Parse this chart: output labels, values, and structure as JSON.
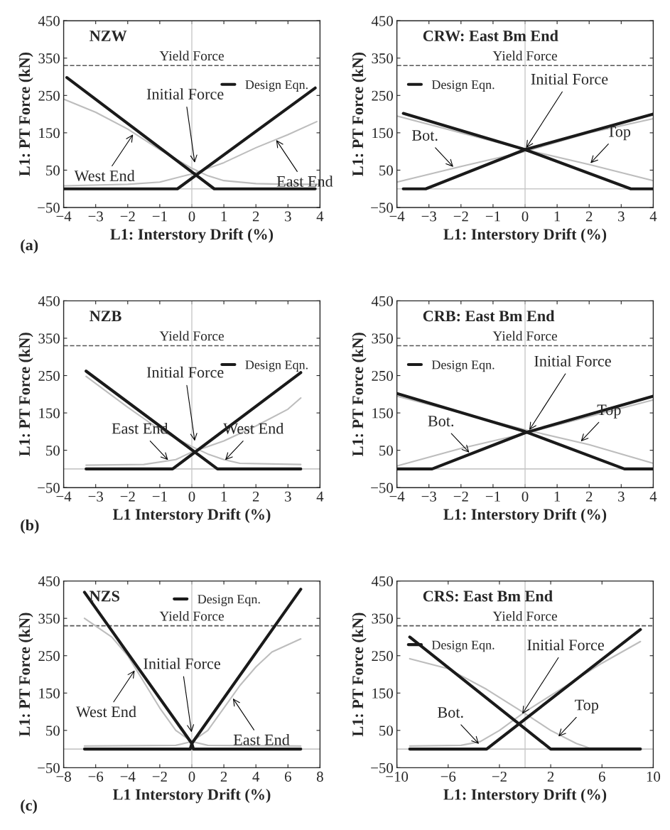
{
  "chart_data": [
    {
      "type": "line",
      "title": "NZW",
      "xlabel": "L1: Interstory Drift (%)",
      "ylabel": "L1: PT Force (kN)",
      "xlim": [
        -4,
        4
      ],
      "xticks": [
        -4,
        -3,
        -2,
        -1,
        0,
        1,
        2,
        3,
        4
      ],
      "ylim": [
        -50,
        450
      ],
      "yticks": [
        -50,
        50,
        150,
        250,
        350,
        450
      ],
      "legend": "top right",
      "series": [
        {
          "color": "#bdbdbd",
          "x": [
            -4,
            -3,
            -2,
            -1,
            0,
            0.5,
            1,
            2,
            3,
            4
          ],
          "values": [
            240,
            205,
            160,
            105,
            55,
            35,
            22,
            14,
            12,
            12
          ]
        },
        {
          "color": "#bdbdbd",
          "x": [
            -4,
            -2,
            -1,
            0,
            1,
            2,
            3,
            3.9
          ],
          "values": [
            8,
            12,
            18,
            40,
            70,
            110,
            145,
            180
          ]
        },
        {
          "name": "Design Eqn.",
          "color": "#1a1a1a",
          "x": [
            -3.9,
            0.7,
            3.85
          ],
          "values": [
            298,
            0,
            0
          ]
        },
        {
          "color": "#1a1a1a",
          "x": [
            -4,
            -0.45,
            3.85
          ],
          "values": [
            0,
            0,
            270
          ]
        }
      ],
      "ref_lines": [
        {
          "axis": "y",
          "value": 330,
          "label": "Yield Force",
          "color": "#555555",
          "line_style": "dashed"
        },
        {
          "axis": "x",
          "value": 0,
          "color": "#c8c8c8"
        },
        {
          "axis": "y",
          "value": 0,
          "color": "#c8c8c8"
        }
      ],
      "annotations": [
        "(a)",
        {
          "text": "Initial Force",
          "x": 0.1,
          "y": 65
        },
        {
          "text": "West End",
          "x": -1.8,
          "y": 150
        },
        {
          "text": "East End",
          "x": 2.6,
          "y": 135
        }
      ]
    },
    {
      "type": "line",
      "title": "CRW: East Bm End",
      "xlabel": "L1: Interstory Drift (%)",
      "ylabel": "L1: PT Force (kN)",
      "xlim": [
        -4,
        4
      ],
      "xticks": [
        -4,
        -3,
        -2,
        -1,
        0,
        1,
        2,
        3,
        4
      ],
      "ylim": [
        -50,
        450
      ],
      "yticks": [
        -50,
        50,
        150,
        250,
        350,
        450
      ],
      "legend": "top left",
      "series": [
        {
          "color": "#bdbdbd",
          "x": [
            -4,
            -2,
            0,
            2,
            4
          ],
          "values": [
            18,
            60,
            100,
            150,
            188
          ]
        },
        {
          "color": "#bdbdbd",
          "x": [
            -4,
            -2,
            0,
            2,
            4
          ],
          "values": [
            195,
            150,
            105,
            65,
            22
          ]
        },
        {
          "name": "Design Eqn.",
          "color": "#1a1a1a",
          "x": [
            -3.8,
            -3.1,
            0,
            4
          ],
          "values": [
            0,
            0,
            105,
            200
          ]
        },
        {
          "color": "#1a1a1a",
          "x": [
            -3.8,
            0,
            3.3,
            4
          ],
          "values": [
            202,
            105,
            0,
            0
          ]
        }
      ],
      "ref_lines": [
        {
          "axis": "y",
          "value": 330,
          "label": "Yield Force",
          "color": "#555555",
          "line_style": "dashed"
        },
        {
          "axis": "x",
          "value": 0,
          "color": "#c8c8c8"
        },
        {
          "axis": "y",
          "value": 0,
          "color": "#c8c8c8"
        }
      ],
      "annotations": [
        {
          "text": "Initial Force",
          "x": 0,
          "y": 105
        },
        {
          "text": "Bot.",
          "x": -2.2,
          "y": 55
        },
        {
          "text": "Top",
          "x": 2,
          "y": 65
        }
      ]
    },
    {
      "type": "line",
      "title": "NZB",
      "xlabel": "L1 Interstory Drift (%)",
      "ylabel": "L1: PT Force (kN)",
      "xlim": [
        -4,
        4
      ],
      "xticks": [
        -4,
        -3,
        -2,
        -1,
        0,
        1,
        2,
        3,
        4
      ],
      "ylim": [
        -50,
        450
      ],
      "yticks": [
        -50,
        50,
        150,
        250,
        350,
        450
      ],
      "legend": "top right",
      "series": [
        {
          "color": "#bdbdbd",
          "x": [
            -3.3,
            -2,
            -1,
            0,
            0.5,
            1,
            1.5,
            3.4
          ],
          "values": [
            248,
            165,
            105,
            60,
            40,
            25,
            15,
            12
          ]
        },
        {
          "color": "#bdbdbd",
          "x": [
            -3.3,
            -1.5,
            -0.5,
            0,
            1,
            2,
            3,
            3.4
          ],
          "values": [
            10,
            12,
            25,
            45,
            75,
            115,
            160,
            190
          ]
        },
        {
          "name": "Design Eqn.",
          "color": "#1a1a1a",
          "x": [
            -3.3,
            0.8,
            3.4
          ],
          "values": [
            262,
            0,
            0
          ]
        },
        {
          "color": "#1a1a1a",
          "x": [
            -3.3,
            -0.6,
            3.4
          ],
          "values": [
            0,
            0,
            258
          ]
        }
      ],
      "ref_lines": [
        {
          "axis": "y",
          "value": 330,
          "label": "Yield Force",
          "color": "#555555",
          "line_style": "dashed"
        },
        {
          "axis": "x",
          "value": 0,
          "color": "#c8c8c8"
        },
        {
          "axis": "y",
          "value": 0,
          "color": "#c8c8c8"
        }
      ],
      "annotations": [
        "(b)",
        {
          "text": "Initial Force",
          "x": 0.1,
          "y": 70
        },
        {
          "text": "East End",
          "x": -0.7,
          "y": 20
        },
        {
          "text": "West End",
          "x": 1,
          "y": 20
        }
      ]
    },
    {
      "type": "line",
      "title": "CRB: East Bm End",
      "xlabel": "L1: Interstory Drift (%)",
      "ylabel": "L1: PT Force (kN)",
      "xlim": [
        -4,
        4
      ],
      "xticks": [
        -4,
        -3,
        -2,
        -1,
        0,
        1,
        2,
        3,
        4
      ],
      "ylim": [
        -50,
        450
      ],
      "yticks": [
        -50,
        50,
        150,
        250,
        350,
        450
      ],
      "legend": "top left",
      "series": [
        {
          "color": "#bdbdbd",
          "x": [
            -4,
            -2,
            0,
            2,
            4
          ],
          "values": [
            8,
            55,
            95,
            140,
            185
          ]
        },
        {
          "color": "#bdbdbd",
          "x": [
            -4,
            -2,
            0,
            2,
            4
          ],
          "values": [
            195,
            150,
            105,
            65,
            15
          ]
        },
        {
          "name": "Design Eqn.",
          "color": "#1a1a1a",
          "x": [
            -4,
            -2.9,
            0,
            4
          ],
          "values": [
            0,
            0,
            97,
            195
          ]
        },
        {
          "color": "#1a1a1a",
          "x": [
            -4,
            0,
            3.1,
            4
          ],
          "values": [
            202,
            100,
            0,
            0
          ]
        }
      ],
      "ref_lines": [
        {
          "axis": "y",
          "value": 330,
          "label": "Yield Force",
          "color": "#555555",
          "line_style": "dashed"
        },
        {
          "axis": "x",
          "value": 0,
          "color": "#c8c8c8"
        },
        {
          "axis": "y",
          "value": 0,
          "color": "#c8c8c8"
        }
      ],
      "annotations": [
        {
          "text": "Initial Force",
          "x": 0.1,
          "y": 100
        },
        {
          "text": "Bot.",
          "x": -1.7,
          "y": 40
        },
        {
          "text": "Top",
          "x": 1.7,
          "y": 70
        }
      ]
    },
    {
      "type": "line",
      "title": "NZS",
      "xlabel": "L1 Interstory Drift (%)",
      "ylabel": "L1: PT Force (kN)",
      "xlim": [
        -8,
        8
      ],
      "xticks": [
        -8,
        -6,
        -4,
        -2,
        0,
        2,
        4,
        6,
        8
      ],
      "ylim": [
        -50,
        450
      ],
      "yticks": [
        -50,
        50,
        150,
        250,
        350,
        450
      ],
      "legend": "top",
      "series": [
        {
          "color": "#bdbdbd",
          "x": [
            -6.7,
            -5,
            -4,
            -3,
            -2,
            -1,
            0,
            1,
            6.8
          ],
          "values": [
            350,
            300,
            250,
            180,
            110,
            50,
            20,
            10,
            8
          ]
        },
        {
          "color": "#bdbdbd",
          "x": [
            -6.7,
            -1,
            0,
            1,
            2,
            3,
            4,
            5,
            6.8
          ],
          "values": [
            8,
            10,
            20,
            50,
            110,
            170,
            220,
            260,
            295
          ]
        },
        {
          "name": "Design Eqn.",
          "color": "#1a1a1a",
          "x": [
            -6.7,
            0,
            0.1,
            6.8
          ],
          "values": [
            420,
            15,
            0,
            0
          ]
        },
        {
          "color": "#1a1a1a",
          "x": [
            -6.7,
            -0.1,
            0,
            6.8
          ],
          "values": [
            0,
            0,
            15,
            428
          ]
        }
      ],
      "ref_lines": [
        {
          "axis": "y",
          "value": 330,
          "label": "Yield Force",
          "color": "#555555",
          "line_style": "dashed"
        },
        {
          "axis": "x",
          "value": 0,
          "color": "#c8c8c8"
        },
        {
          "axis": "y",
          "value": 0,
          "color": "#c8c8c8"
        }
      ],
      "annotations": [
        "(c)",
        {
          "text": "Initial Force",
          "x": 0,
          "y": 40
        },
        {
          "text": "West End",
          "x": -3.5,
          "y": 215
        },
        {
          "text": "East End",
          "x": 2.5,
          "y": 140
        }
      ]
    },
    {
      "type": "line",
      "title": "CRS: East Bm End",
      "xlabel": "L1: Interstory Drift (%)",
      "ylabel": "L1: PT Force (kN)",
      "xlim": [
        -10,
        10
      ],
      "xticks": [
        -10,
        -6,
        -2,
        2,
        6,
        10
      ],
      "ylim": [
        -50,
        450
      ],
      "yticks": [
        -50,
        50,
        150,
        250,
        350,
        450
      ],
      "legend": "top left",
      "series": [
        {
          "color": "#bdbdbd",
          "x": [
            -9,
            -5,
            -3.5,
            -2,
            0,
            3,
            6,
            9
          ],
          "values": [
            8,
            10,
            20,
            50,
            100,
            165,
            230,
            288
          ]
        },
        {
          "color": "#bdbdbd",
          "x": [
            -9,
            -6,
            -3,
            0,
            2,
            4,
            5,
            9
          ],
          "values": [
            242,
            215,
            160,
            95,
            50,
            15,
            3,
            3
          ]
        },
        {
          "name": "Design Eqn.",
          "color": "#1a1a1a",
          "x": [
            -9,
            2,
            9
          ],
          "values": [
            300,
            0,
            0
          ]
        },
        {
          "color": "#1a1a1a",
          "x": [
            -9,
            -3,
            9
          ],
          "values": [
            0,
            0,
            320
          ]
        }
      ],
      "ref_lines": [
        {
          "axis": "y",
          "value": 330,
          "label": "Yield Force",
          "color": "#555555",
          "line_style": "dashed"
        },
        {
          "axis": "x",
          "value": 0,
          "color": "#c8c8c8"
        },
        {
          "axis": "y",
          "value": 0,
          "color": "#c8c8c8"
        }
      ],
      "annotations": [
        {
          "text": "Initial Force",
          "x": -0.3,
          "y": 90
        },
        {
          "text": "Bot.",
          "x": -3.5,
          "y": 10
        },
        {
          "text": "Top",
          "x": 2.5,
          "y": 30
        }
      ]
    }
  ]
}
